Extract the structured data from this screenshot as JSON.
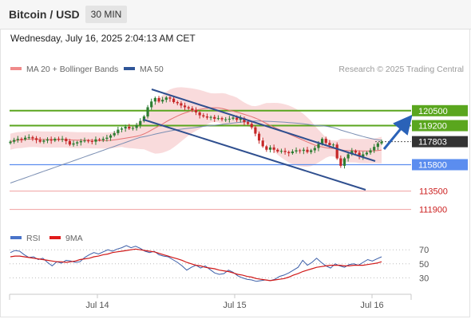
{
  "header": {
    "title": "Bitcoin / USD",
    "timeframe": "30 MIN"
  },
  "datetime": "Wednesday, July 16, 2025 2:04:13 AM CET",
  "credit": "Research © 2025 Trading Central",
  "colors": {
    "candle_up": "#2e7d32",
    "candle_down": "#c62828",
    "band_fill": "#f7cfd0",
    "ma20": "#e57373",
    "ma50": "#7b8fb3",
    "trend": "#2f4f8f",
    "resistance": "#5aa61e",
    "pivot": "#5b8def",
    "support": "#f0a0a0",
    "arrow": "#2a62b8",
    "last_price": "#333333",
    "rsi": "#3b5ea8",
    "rsi_ma": "#d01818"
  },
  "chart_data": [
    {
      "type": "candlestick",
      "legend": [
        {
          "name": "MA 20 + Bollinger Bands",
          "color": "#f08a8a"
        },
        {
          "name": "MA 50",
          "color": "#2f5597"
        }
      ],
      "x_ticks": [
        "Jul 14",
        "Jul 15",
        "Jul 16"
      ],
      "y_range": [
        110000,
        122500
      ],
      "levels": [
        {
          "value": 120500,
          "label": "120500",
          "kind": "resistance"
        },
        {
          "value": 119200,
          "label": "119200",
          "kind": "resistance"
        },
        {
          "value": 117803,
          "label": "117803",
          "kind": "last"
        },
        {
          "value": 115800,
          "label": "115800",
          "kind": "pivot"
        },
        {
          "value": 113500,
          "label": "113500",
          "kind": "support"
        },
        {
          "value": 111900,
          "label": "111900",
          "kind": "support"
        }
      ],
      "close": [
        117800,
        117950,
        118050,
        118000,
        118150,
        118200,
        118100,
        117950,
        117800,
        117900,
        118000,
        117900,
        118050,
        118000,
        118050,
        117850,
        117550,
        117650,
        117750,
        117850,
        117900,
        117850,
        117800,
        118000,
        117950,
        118050,
        118150,
        118350,
        118550,
        118850,
        118950,
        119100,
        118950,
        119000,
        119250,
        119600,
        120000,
        120800,
        121300,
        121600,
        121300,
        121450,
        121650,
        121550,
        121250,
        121150,
        120950,
        120800,
        120700,
        120550,
        120350,
        120100,
        120000,
        119900,
        119950,
        119800,
        119850,
        119750,
        119750,
        119800,
        119900,
        119700,
        119850,
        119500,
        119350,
        119050,
        118500,
        117900,
        117400,
        117100,
        117300,
        117100,
        116950,
        117000,
        116900,
        116800,
        116950,
        117050,
        117000,
        117100,
        116900,
        117050,
        117250,
        117600,
        118050,
        117700,
        117500,
        117550,
        116350,
        115700,
        116350,
        116700,
        117000,
        116850,
        116500,
        116700,
        116850,
        117050,
        117350,
        117650,
        117800
      ]
    },
    {
      "type": "line",
      "name": "RSI",
      "legend": [
        {
          "name": "RSI",
          "color": "#4a74c9"
        },
        {
          "name": "9MA",
          "color": "#e01b1b"
        }
      ],
      "y_ticks": [
        70,
        50,
        30
      ],
      "y_range": [
        10,
        85
      ],
      "rsi": [
        66,
        69,
        68,
        63,
        59,
        60,
        56,
        58,
        52,
        47,
        53,
        51,
        55,
        54,
        52,
        53,
        59,
        63,
        66,
        64,
        67,
        70,
        68,
        71,
        73,
        76,
        73,
        75,
        72,
        68,
        66,
        68,
        63,
        61,
        60,
        56,
        52,
        47,
        41,
        45,
        48,
        44,
        47,
        42,
        37,
        35,
        36,
        41,
        38,
        33,
        30,
        28,
        27,
        25,
        26,
        27,
        26,
        28,
        32,
        34,
        37,
        41,
        45,
        55,
        48,
        52,
        58,
        52,
        47,
        44,
        50,
        47,
        45,
        49,
        50,
        48,
        52,
        56,
        54,
        57,
        60
      ],
      "ma9": [
        60,
        61,
        61,
        60,
        59,
        58,
        57,
        56,
        55,
        54,
        53,
        53,
        52,
        53,
        54,
        56,
        57,
        58,
        60,
        61,
        63,
        64,
        66,
        67,
        68,
        69,
        70,
        71,
        70,
        69,
        68,
        67,
        65,
        63,
        61,
        59,
        57,
        55,
        52,
        50,
        48,
        47,
        45,
        44,
        43,
        41,
        40,
        39,
        37,
        35,
        34,
        32,
        31,
        29,
        28,
        27,
        26,
        27,
        28,
        29,
        31,
        34,
        36,
        39,
        41,
        43,
        45,
        46,
        47,
        48,
        48,
        48,
        47,
        47,
        48,
        48,
        48,
        49,
        50,
        51,
        53
      ]
    }
  ]
}
